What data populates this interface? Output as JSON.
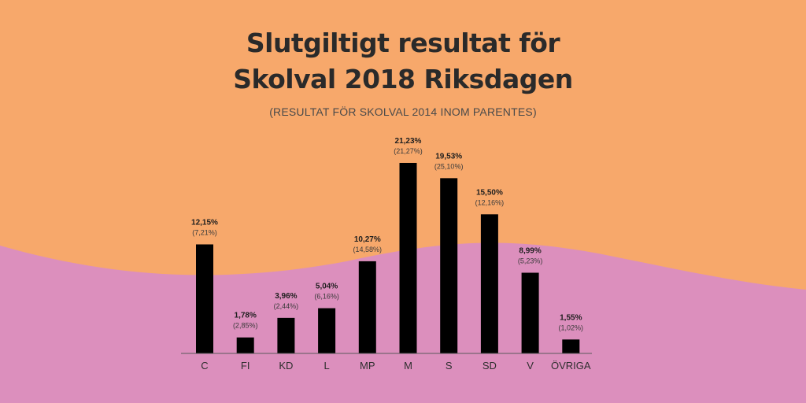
{
  "header": {
    "title_line1": "Slutgiltigt resultat för",
    "title_line2": "Skolval 2018 Riksdagen",
    "subtitle": "(RESULTAT FÖR SKOLVAL 2014 INOM PARENTES)"
  },
  "colors": {
    "background_top": "#f7a86b",
    "background_bottom": "#dc8fbd",
    "bar": "#000000"
  },
  "chart_data": {
    "type": "bar",
    "categories": [
      "C",
      "FI",
      "KD",
      "L",
      "MP",
      "M",
      "S",
      "SD",
      "V",
      "ÖVRIGA"
    ],
    "series": [
      {
        "values": [
          12.15,
          1.78,
          3.96,
          5.04,
          10.27,
          21.23,
          19.53,
          15.5,
          8.99,
          1.55
        ]
      }
    ],
    "previous_values": [
      7.21,
      2.85,
      2.44,
      6.16,
      14.58,
      21.27,
      25.1,
      12.16,
      5.23,
      1.02
    ],
    "value_labels": [
      "12,15%",
      "1,78%",
      "3,96%",
      "5,04%",
      "10,27%",
      "21,23%",
      "19,53%",
      "15,50%",
      "8,99%",
      "1,55%"
    ],
    "previous_labels": [
      "(7,21%)",
      "(2,85%)",
      "(2,44%)",
      "(6,16%)",
      "(14,58%)",
      "(21,27%)",
      "(25,10%)",
      "(12,16%)",
      "(5,23%)",
      "(1,02%)"
    ],
    "title": "Slutgiltigt resultat för Skolval 2018 Riksdagen",
    "xlabel": "",
    "ylabel": "",
    "ylim": [
      0,
      22
    ],
    "grid": false,
    "legend": "none"
  }
}
